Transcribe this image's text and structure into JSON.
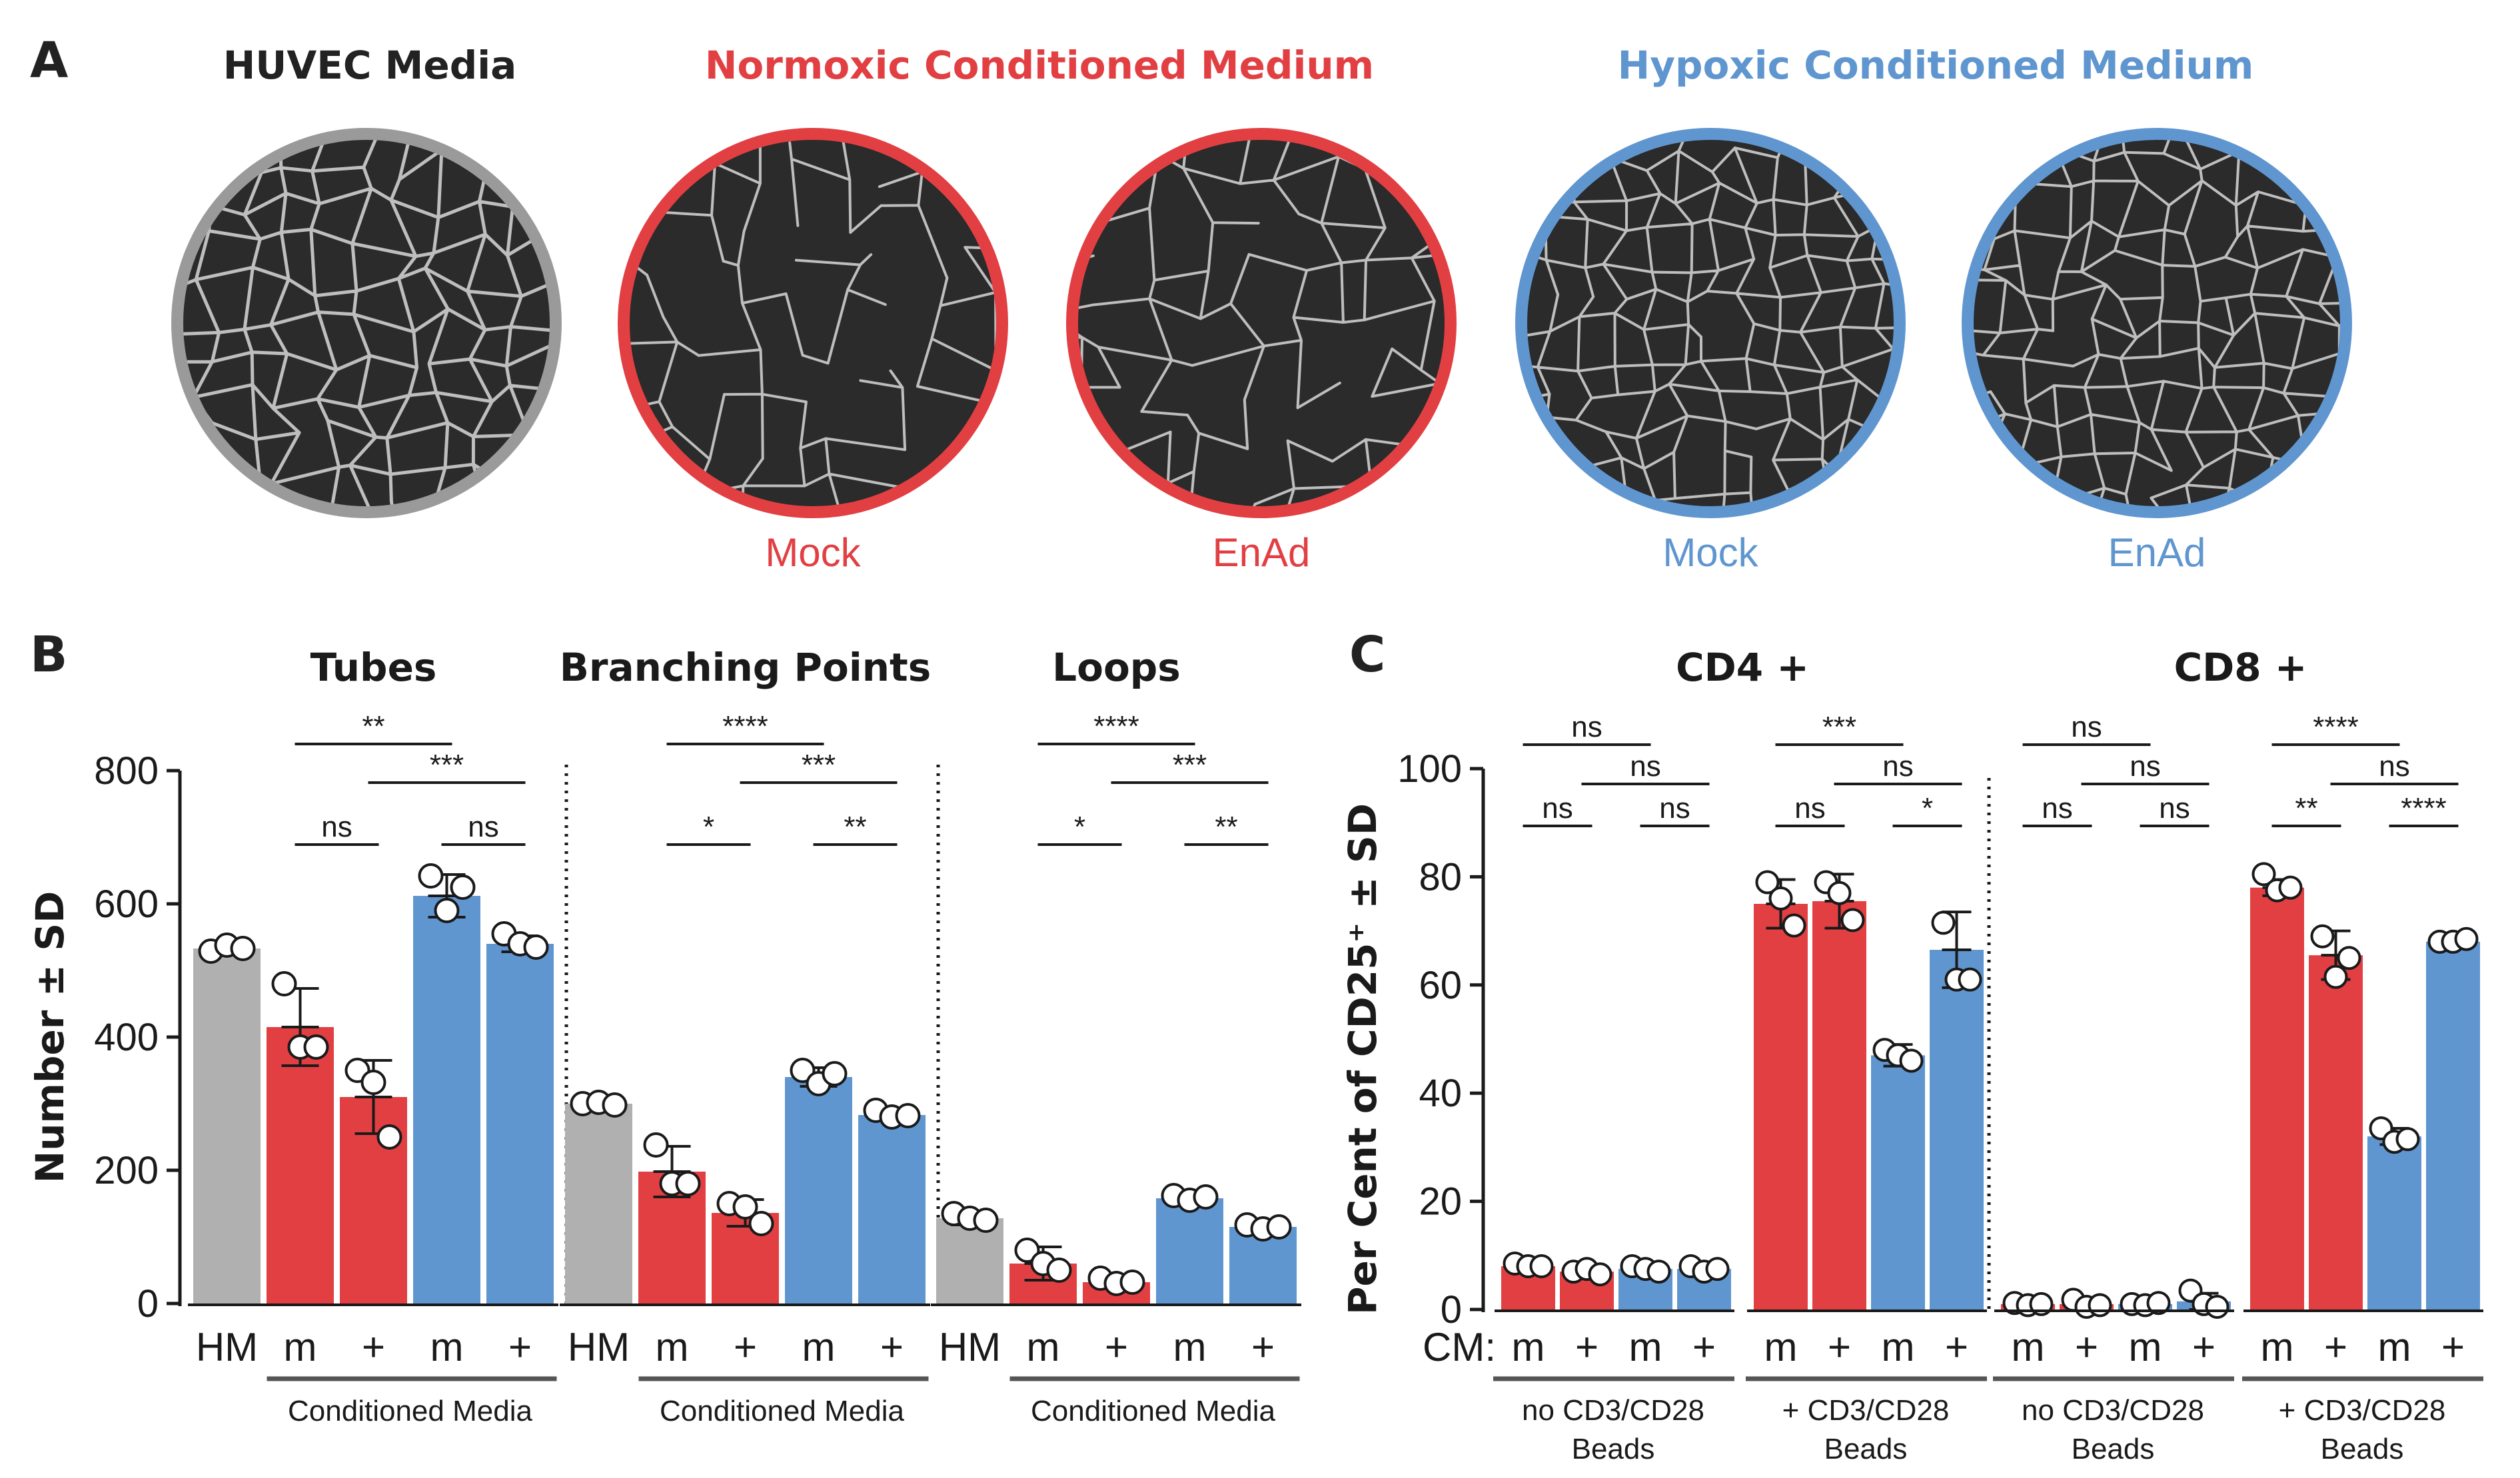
{
  "colors": {
    "gray": "#b0b0b0",
    "red": "#e23f43",
    "blue": "#6096d0",
    "gray_ring": "#9a9a9a",
    "dark": "#1a1a1a"
  },
  "panel_a": {
    "letter": "A",
    "groups": [
      {
        "title": "HUVEC Media",
        "color": "#222222"
      },
      {
        "title": "Normoxic Conditioned Medium",
        "color": "#e23f43"
      },
      {
        "title": "Hypoxic Conditioned Medium",
        "color": "#6096d0"
      }
    ],
    "images": [
      {
        "caption": "",
        "ring": "#9a9a9a"
      },
      {
        "caption": "Mock",
        "ring": "#e23f43"
      },
      {
        "caption": "EnAd",
        "ring": "#e23f43"
      },
      {
        "caption": "Mock",
        "ring": "#6096d0"
      },
      {
        "caption": "EnAd",
        "ring": "#6096d0"
      }
    ]
  },
  "chart_data": [
    {
      "panel": "B",
      "type": "bar",
      "ylabel": "Number ± SD",
      "ylim": [
        0,
        800
      ],
      "yticks": [
        0,
        200,
        400,
        600,
        800
      ],
      "categories": [
        "HM",
        "m",
        "+",
        "m",
        "+"
      ],
      "bar_colors": [
        "#b0b0b0",
        "#e23f43",
        "#e23f43",
        "#6096d0",
        "#6096d0"
      ],
      "group_footer": "Conditioned Media",
      "subplots": [
        {
          "title": "Tubes",
          "values": [
            533,
            415,
            310,
            612,
            540
          ],
          "errors": [
            10,
            58,
            55,
            32,
            12
          ],
          "points": [
            [
              529,
              538,
              533
            ],
            [
              480,
              385,
              385
            ],
            [
              350,
              332,
              250
            ],
            [
              642,
              590,
              625
            ],
            [
              555,
              540,
              535
            ]
          ],
          "comparisons": [
            {
              "from": 1,
              "to": 3,
              "label": "**",
              "level": 3
            },
            {
              "from": 2,
              "to": 4,
              "label": "***",
              "level": 2
            },
            {
              "from": 1,
              "to": 2,
              "label": "ns",
              "level": 1
            },
            {
              "from": 3,
              "to": 4,
              "label": "ns",
              "level": 1
            }
          ]
        },
        {
          "title": "Branching Points",
          "values": [
            300,
            198,
            136,
            340,
            283
          ],
          "errors": [
            6,
            38,
            20,
            14,
            8
          ],
          "points": [
            [
              300,
              302,
              298
            ],
            [
              238,
              180,
              180
            ],
            [
              150,
              145,
              120
            ],
            [
              350,
              330,
              345
            ],
            [
              290,
              280,
              282
            ]
          ],
          "comparisons": [
            {
              "from": 1,
              "to": 3,
              "label": "****",
              "level": 3
            },
            {
              "from": 2,
              "to": 4,
              "label": "***",
              "level": 2
            },
            {
              "from": 1,
              "to": 2,
              "label": "*",
              "level": 1
            },
            {
              "from": 3,
              "to": 4,
              "label": "**",
              "level": 1
            }
          ]
        },
        {
          "title": "Loops",
          "values": [
            128,
            60,
            32,
            158,
            115
          ],
          "errors": [
            10,
            25,
            8,
            10,
            8
          ],
          "points": [
            [
              135,
              128,
              125
            ],
            [
              80,
              60,
              50
            ],
            [
              38,
              30,
              32
            ],
            [
              162,
              155,
              160
            ],
            [
              118,
              112,
              115
            ]
          ],
          "comparisons": [
            {
              "from": 1,
              "to": 3,
              "label": "****",
              "level": 3
            },
            {
              "from": 2,
              "to": 4,
              "label": "***",
              "level": 2
            },
            {
              "from": 1,
              "to": 2,
              "label": "*",
              "level": 1
            },
            {
              "from": 3,
              "to": 4,
              "label": "**",
              "level": 1
            }
          ]
        }
      ]
    },
    {
      "panel": "C",
      "type": "bar",
      "ylabel": "Per Cent of CD25⁺ ± SD",
      "ylim": [
        0,
        100
      ],
      "yticks": [
        0,
        20,
        40,
        60,
        80,
        100
      ],
      "cm_label": "CM:",
      "categories": [
        "m",
        "+",
        "m",
        "+"
      ],
      "bar_colors": [
        "#e23f43",
        "#e23f43",
        "#6096d0",
        "#6096d0"
      ],
      "subplots": [
        {
          "title": "CD4 +",
          "groups": [
            {
              "footer": [
                "no CD3/CD28",
                "Beads"
              ],
              "values": [
                8,
                7,
                7.5,
                7.5
              ],
              "errors": [
                1,
                1,
                1,
                1
              ],
              "points": [
                [
                  8.5,
                  8,
                  8
                ],
                [
                  7,
                  7.5,
                  6.5
                ],
                [
                  8,
                  7.5,
                  7
                ],
                [
                  8,
                  7,
                  7.5
                ]
              ],
              "comparisons": [
                {
                  "from": 0,
                  "to": 2,
                  "label": "ns",
                  "level": 3
                },
                {
                  "from": 1,
                  "to": 3,
                  "label": "ns",
                  "level": 2
                },
                {
                  "from": 0,
                  "to": 1,
                  "label": "ns",
                  "level": 1
                },
                {
                  "from": 2,
                  "to": 3,
                  "label": "ns",
                  "level": 1
                }
              ]
            },
            {
              "footer": [
                "+ CD3/CD28",
                "Beads"
              ],
              "values": [
                75,
                75.5,
                47,
                66.5
              ],
              "errors": [
                4.5,
                5,
                2,
                7
              ],
              "points": [
                [
                  79,
                  76,
                  71
                ],
                [
                  79,
                  77,
                  72
                ],
                [
                  48,
                  47,
                  46
                ],
                [
                  71.5,
                  61,
                  61
                ]
              ],
              "comparisons": [
                {
                  "from": 0,
                  "to": 2,
                  "label": "***",
                  "level": 3
                },
                {
                  "from": 1,
                  "to": 3,
                  "label": "ns",
                  "level": 2
                },
                {
                  "from": 0,
                  "to": 1,
                  "label": "ns",
                  "level": 1
                },
                {
                  "from": 2,
                  "to": 3,
                  "label": "*",
                  "level": 1
                }
              ]
            }
          ]
        },
        {
          "title": "CD8 +",
          "groups": [
            {
              "footer": [
                "no CD3/CD28",
                "Beads"
              ],
              "values": [
                1,
                1,
                1,
                1.5
              ],
              "errors": [
                0.5,
                0.8,
                0.5,
                1.5
              ],
              "points": [
                [
                  1.2,
                  0.8,
                  1
                ],
                [
                  1.8,
                  0.5,
                  0.8
                ],
                [
                  1,
                  0.8,
                  1.2
                ],
                [
                  3.5,
                  1,
                  0.5
                ]
              ],
              "comparisons": [
                {
                  "from": 0,
                  "to": 2,
                  "label": "ns",
                  "level": 3
                },
                {
                  "from": 1,
                  "to": 3,
                  "label": "ns",
                  "level": 2
                },
                {
                  "from": 0,
                  "to": 1,
                  "label": "ns",
                  "level": 1
                },
                {
                  "from": 2,
                  "to": 3,
                  "label": "ns",
                  "level": 1
                }
              ]
            },
            {
              "footer": [
                "+ CD3/CD28",
                "Beads"
              ],
              "values": [
                78,
                65.5,
                32,
                68
              ],
              "errors": [
                1.5,
                4.5,
                1.5,
                0.8
              ],
              "points": [
                [
                  80.5,
                  77.5,
                  78
                ],
                [
                  69,
                  61.5,
                  65
                ],
                [
                  33.5,
                  31,
                  31.5
                ],
                [
                  68,
                  68,
                  68.5
                ]
              ],
              "comparisons": [
                {
                  "from": 0,
                  "to": 2,
                  "label": "****",
                  "level": 3
                },
                {
                  "from": 1,
                  "to": 3,
                  "label": "ns",
                  "level": 2
                },
                {
                  "from": 0,
                  "to": 1,
                  "label": "**",
                  "level": 1
                },
                {
                  "from": 2,
                  "to": 3,
                  "label": "****",
                  "level": 1
                }
              ]
            }
          ]
        }
      ]
    }
  ]
}
